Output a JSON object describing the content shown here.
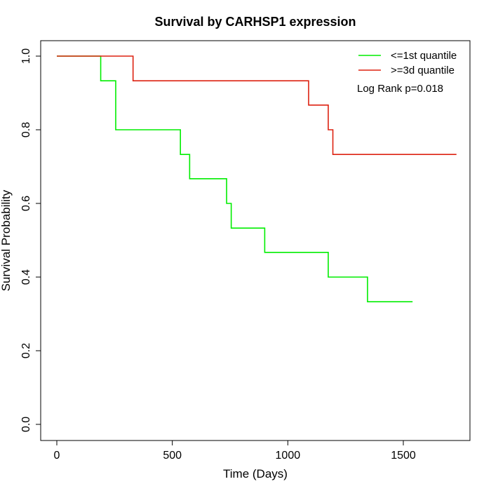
{
  "chart_data": {
    "type": "line",
    "title": "Survival by CARHSP1 expression",
    "xlabel": "Time (Days)",
    "ylabel": "Survival Probability",
    "xlim": [
      0,
      1730
    ],
    "ylim": [
      0,
      1.0
    ],
    "x_ticks": [
      0,
      500,
      1000,
      1500
    ],
    "y_ticks": [
      0.0,
      0.2,
      0.4,
      0.6,
      0.8,
      1.0
    ],
    "x_tick_labels": [
      "0",
      "500",
      "1000",
      "1500"
    ],
    "y_tick_labels": [
      "0.0",
      "0.2",
      "0.4",
      "0.6",
      "0.8",
      "1.0"
    ],
    "grid": false,
    "legend_position": "top-right",
    "series": [
      {
        "name": "<=1st quantile",
        "color": "#00ee00",
        "x": [
          0,
          190,
          255,
          535,
          575,
          735,
          755,
          900,
          1175,
          1345,
          1540
        ],
        "y": [
          1.0,
          0.933,
          0.8,
          0.733,
          0.667,
          0.6,
          0.533,
          0.467,
          0.4,
          0.333,
          0.333
        ]
      },
      {
        "name": ">=3d quantile",
        "color": "#dd2211",
        "x": [
          0,
          330,
          1090,
          1175,
          1195,
          1730
        ],
        "y": [
          1.0,
          0.933,
          0.867,
          0.8,
          0.733,
          0.733
        ]
      }
    ],
    "annotation": "Log Rank p=0.018"
  }
}
